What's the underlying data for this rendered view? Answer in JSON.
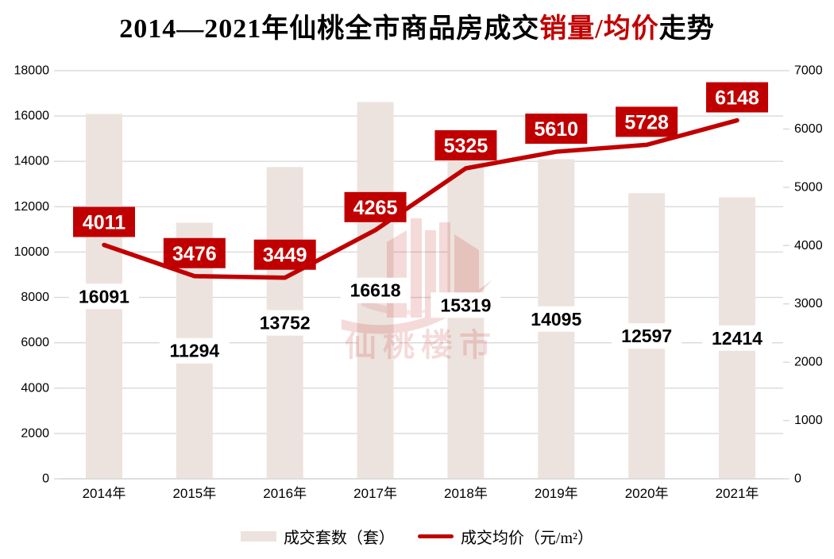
{
  "title": {
    "black_left": "2014—2021年仙桃全市商品房成交",
    "red_part": "销量/均价",
    "black_right": "走势"
  },
  "watermark": {
    "text": "仙桃楼市"
  },
  "legend": {
    "bar_label": "成交套数（套）",
    "line_label": "成交均价（元/m²）"
  },
  "colors": {
    "bar_fill": "#EDE3DE",
    "line": "#C00000",
    "price_label_bg": "#C00000",
    "price_label_text": "#FFFFFF",
    "count_label_text": "#000000",
    "count_label_bg": "#FFFFFF",
    "gridline": "#D9D9D9",
    "axis_text": "#000000",
    "title_highlight": "#C00000",
    "watermark": "#C00000"
  },
  "chart_data": {
    "type": "combo",
    "categories": [
      "2014年",
      "2015年",
      "2016年",
      "2017年",
      "2018年",
      "2019年",
      "2020年",
      "2021年"
    ],
    "series": [
      {
        "name": "成交套数（套）",
        "type": "bar",
        "axis": "left",
        "values": [
          16091,
          11294,
          13752,
          16618,
          15319,
          14095,
          12597,
          12414
        ]
      },
      {
        "name": "成交均价（元/m²）",
        "type": "line",
        "axis": "right",
        "values": [
          4011,
          3476,
          3449,
          4265,
          5325,
          5610,
          5728,
          6148
        ]
      }
    ],
    "left_axis": {
      "min": 0,
      "max": 18000,
      "step": 2000
    },
    "right_axis": {
      "min": 0,
      "max": 7000,
      "step": 1000
    },
    "grid": true,
    "legend_position": "bottom",
    "title": "2014—2021年仙桃全市商品房成交销量/均价走势"
  }
}
